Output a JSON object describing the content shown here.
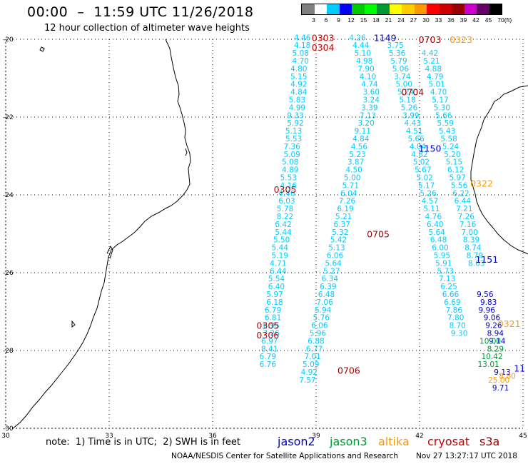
{
  "header": {
    "title": "00:00  –  11:59 UTC 11/26/2018",
    "subtitle": "12 hour collection of altimeter wave heights"
  },
  "legend_scale": {
    "labels": [
      "3",
      "6",
      "9",
      "12",
      "15",
      "18",
      "21",
      "24",
      "27",
      "30",
      "33",
      "36",
      "39",
      "42",
      "45",
      "70"
    ],
    "unit": "(ft)",
    "colors": [
      "#808080",
      "#ffffff",
      "#00ccff",
      "#0000ff",
      "#00cc00",
      "#00ff00",
      "#009933",
      "#ffff00",
      "#ffcc00",
      "#ff9900",
      "#ff0000",
      "#cc0000",
      "#990000",
      "#cc00cc",
      "#660066",
      "#000000"
    ]
  },
  "map": {
    "lon_labels": [
      "30",
      "33",
      "36",
      "39",
      "42",
      "45"
    ],
    "lat_labels": [
      "-20",
      "-22",
      "-24",
      "-26",
      "-28",
      "-30"
    ],
    "colors": {
      "jason2": "#0000cc",
      "jason3": "#009933",
      "altika": "#ff9900",
      "cryosat": "#cc0000",
      "s3a": "#990000",
      "swh_cyan": "#00ccff"
    }
  },
  "chart_data": {
    "type": "scatter",
    "xlabel": "",
    "ylabel": "",
    "xlim": [
      30,
      45
    ],
    "ylim": [
      -30,
      -20
    ],
    "grid": true,
    "tracks": [
      {
        "satellite": "cryosat",
        "passes": [
          {
            "label": "0303",
            "lon": 39.2,
            "lat": -19.95
          },
          {
            "label": "0304",
            "lon": 39.2,
            "lat": -20.2
          },
          {
            "label": "0305",
            "lon": 38.1,
            "lat": -23.85
          },
          {
            "label": "0305",
            "lon": 37.6,
            "lat": -27.35
          },
          {
            "label": "0306",
            "lon": 37.6,
            "lat": -27.6
          }
        ]
      },
      {
        "satellite": "s3a",
        "passes": [
          {
            "label": "0703",
            "lon": 42.3,
            "lat": -20.0
          },
          {
            "label": "0704",
            "lon": 41.8,
            "lat": -21.35
          },
          {
            "label": "0705",
            "lon": 40.8,
            "lat": -25.0
          },
          {
            "label": "0706",
            "lon": 39.95,
            "lat": -28.5
          }
        ]
      },
      {
        "satellite": "jason2",
        "passes": [
          {
            "label": "1149",
            "lon": 41.0,
            "lat": -19.95
          },
          {
            "label": "1150",
            "lon": 42.3,
            "lat": -22.8
          },
          {
            "label": "1151",
            "lon": 43.95,
            "lat": -25.65
          },
          {
            "label": "11",
            "lon": 44.9,
            "lat": -28.45
          }
        ]
      },
      {
        "satellite": "altika",
        "passes": [
          {
            "label": "0323",
            "lon": 43.2,
            "lat": -20.0
          },
          {
            "label": "0322",
            "lon": 43.8,
            "lat": -23.7
          },
          {
            "label": "0321",
            "lon": 44.6,
            "lat": -27.3
          }
        ]
      }
    ],
    "observations": [
      {
        "track": "A",
        "color": "cyan",
        "points": [
          [
            38.6,
            -19.95,
            "4.46"
          ],
          [
            38.6,
            -20.15,
            "4.18"
          ],
          [
            38.55,
            -20.35,
            "5.08"
          ],
          [
            38.55,
            -20.55,
            "4.70"
          ],
          [
            38.5,
            -20.75,
            "4.80"
          ],
          [
            38.5,
            -20.95,
            "5.15"
          ],
          [
            38.5,
            -21.15,
            "4.92"
          ],
          [
            38.5,
            -21.35,
            "4.84"
          ],
          [
            38.45,
            -21.55,
            "5.83"
          ],
          [
            38.45,
            -21.75,
            "4.99"
          ],
          [
            38.4,
            -21.95,
            "9.33"
          ],
          [
            38.4,
            -22.15,
            "5.92"
          ],
          [
            38.35,
            -22.35,
            "5.13"
          ],
          [
            38.35,
            -22.55,
            "5.53"
          ],
          [
            38.3,
            -22.75,
            "7.36"
          ],
          [
            38.3,
            -22.95,
            "5.09"
          ],
          [
            38.25,
            -23.15,
            "5.08"
          ],
          [
            38.25,
            -23.35,
            "4.89"
          ],
          [
            38.2,
            -23.55,
            "5.53"
          ],
          [
            38.2,
            -23.75,
            "4.16"
          ],
          [
            38.15,
            -23.95,
            "4.46"
          ],
          [
            38.15,
            -24.15,
            "6.03"
          ],
          [
            38.1,
            -24.35,
            "5.78"
          ],
          [
            38.1,
            -24.55,
            "8.22"
          ],
          [
            38.05,
            -24.75,
            "6.42"
          ],
          [
            38.05,
            -24.95,
            "5.44"
          ],
          [
            38.0,
            -25.15,
            "5.50"
          ],
          [
            37.95,
            -25.35,
            "5.44"
          ],
          [
            37.95,
            -25.55,
            "5.19"
          ],
          [
            37.9,
            -25.75,
            "4.71"
          ],
          [
            37.9,
            -25.95,
            "6.44"
          ],
          [
            37.85,
            -26.15,
            "5.54"
          ],
          [
            37.85,
            -26.35,
            "6.40"
          ],
          [
            37.8,
            -26.55,
            "5.97"
          ],
          [
            37.8,
            -26.75,
            "6.18"
          ],
          [
            37.75,
            -26.95,
            "6.79"
          ],
          [
            37.75,
            -27.15,
            "6.81"
          ],
          [
            37.7,
            -27.35,
            "6.95"
          ],
          [
            37.7,
            -27.55,
            "7.26"
          ],
          [
            37.65,
            -27.75,
            "6.97"
          ],
          [
            37.65,
            -27.95,
            "8.41"
          ],
          [
            37.6,
            -28.15,
            "6.79"
          ],
          [
            37.6,
            -28.35,
            "6.76"
          ]
        ]
      },
      {
        "track": "B",
        "color": "cyan",
        "points": [
          [
            40.2,
            -19.95,
            "4.26"
          ],
          [
            40.3,
            -20.15,
            "4.44"
          ],
          [
            40.35,
            -20.35,
            "5.10"
          ],
          [
            40.4,
            -20.55,
            "4.98"
          ],
          [
            40.45,
            -20.75,
            "7.90"
          ],
          [
            40.5,
            -20.95,
            "4.10"
          ],
          [
            40.55,
            -21.15,
            "4.74"
          ],
          [
            40.6,
            -21.35,
            "3.60"
          ],
          [
            40.6,
            -21.55,
            "3.24"
          ],
          [
            40.55,
            -21.75,
            "3.39"
          ],
          [
            40.5,
            -21.95,
            "7.13"
          ],
          [
            40.45,
            -22.15,
            "3.20"
          ],
          [
            40.35,
            -22.35,
            "9.11"
          ],
          [
            40.3,
            -22.55,
            "4.84"
          ],
          [
            40.25,
            -22.75,
            "4.56"
          ],
          [
            40.2,
            -22.95,
            "5.23"
          ],
          [
            40.15,
            -23.15,
            "3.87"
          ],
          [
            40.1,
            -23.35,
            "4.50"
          ],
          [
            40.05,
            -23.55,
            "5.00"
          ],
          [
            40.0,
            -23.75,
            "5.71"
          ],
          [
            39.95,
            -23.95,
            "6.04"
          ],
          [
            39.9,
            -24.15,
            "7.26"
          ],
          [
            39.85,
            -24.35,
            "6.19"
          ],
          [
            39.8,
            -24.55,
            "5.21"
          ],
          [
            39.75,
            -24.75,
            "6.37"
          ],
          [
            39.7,
            -24.95,
            "5.32"
          ],
          [
            39.65,
            -25.15,
            "5.42"
          ],
          [
            39.6,
            -25.35,
            "5.13"
          ],
          [
            39.55,
            -25.55,
            "6.06"
          ],
          [
            39.5,
            -25.75,
            "5.64"
          ],
          [
            39.45,
            -25.95,
            "5.27"
          ],
          [
            39.4,
            -26.15,
            "6.34"
          ],
          [
            39.35,
            -26.35,
            "6.39"
          ],
          [
            39.3,
            -26.55,
            "6.48"
          ],
          [
            39.25,
            -26.75,
            "7.06"
          ],
          [
            39.2,
            -26.95,
            "5.94"
          ],
          [
            39.15,
            -27.15,
            "5.76"
          ],
          [
            39.1,
            -27.35,
            "6.06"
          ],
          [
            39.05,
            -27.55,
            "5.96"
          ],
          [
            39.0,
            -27.75,
            "6.88"
          ],
          [
            38.95,
            -27.95,
            "6.77"
          ],
          [
            38.9,
            -28.15,
            "7.01"
          ],
          [
            38.85,
            -28.35,
            "5.09"
          ],
          [
            38.8,
            -28.55,
            "4.92"
          ],
          [
            38.75,
            -28.75,
            "7.57"
          ]
        ]
      },
      {
        "track": "C",
        "color": "cyan",
        "points": [
          [
            41.3,
            -20.15,
            "3.75"
          ],
          [
            41.35,
            -20.35,
            "5.36"
          ],
          [
            41.4,
            -20.55,
            "5.79"
          ],
          [
            41.45,
            -20.75,
            "5.06"
          ],
          [
            41.5,
            -20.95,
            "3.74"
          ],
          [
            41.55,
            -21.15,
            "5.00"
          ],
          [
            41.6,
            -21.35,
            "5.24"
          ],
          [
            41.65,
            -21.55,
            "5.18"
          ],
          [
            41.7,
            -21.75,
            "5.26"
          ],
          [
            41.75,
            -21.95,
            "3.99"
          ],
          [
            41.8,
            -22.15,
            "4.43"
          ],
          [
            41.85,
            -22.35,
            "4.51"
          ],
          [
            41.9,
            -22.55,
            "5.66"
          ],
          [
            41.95,
            -22.75,
            "4.04"
          ],
          [
            42.0,
            -22.95,
            "4.82"
          ],
          [
            42.05,
            -23.15,
            "5.02"
          ],
          [
            42.1,
            -23.35,
            "5.67"
          ],
          [
            42.15,
            -23.55,
            "5.02"
          ],
          [
            42.2,
            -23.75,
            "5.17"
          ],
          [
            42.25,
            -23.95,
            "5.26"
          ],
          [
            42.3,
            -24.15,
            "4.57"
          ],
          [
            42.35,
            -24.35,
            "5.11"
          ],
          [
            42.4,
            -24.55,
            "4.76"
          ],
          [
            42.45,
            -24.75,
            "6.40"
          ],
          [
            42.5,
            -24.95,
            "5.64"
          ],
          [
            42.55,
            -25.15,
            "6.48"
          ],
          [
            42.6,
            -25.35,
            "6.00"
          ],
          [
            42.65,
            -25.55,
            "5.95"
          ],
          [
            42.7,
            -25.75,
            "5.91"
          ],
          [
            42.75,
            -25.95,
            "5.73"
          ],
          [
            42.8,
            -26.15,
            "7.13"
          ],
          [
            42.85,
            -26.35,
            "6.25"
          ],
          [
            42.9,
            -26.55,
            "6.66"
          ],
          [
            42.95,
            -26.75,
            "6.69"
          ],
          [
            43.0,
            -26.95,
            "7.86"
          ],
          [
            43.05,
            -27.15,
            "7.80"
          ],
          [
            43.1,
            -27.35,
            "8.70"
          ],
          [
            43.15,
            -27.55,
            "9.30"
          ]
        ]
      },
      {
        "track": "D",
        "color": "cyan",
        "points": [
          [
            42.3,
            -20.35,
            "4.42"
          ],
          [
            42.35,
            -20.55,
            "5.21"
          ],
          [
            42.4,
            -20.75,
            "4.88"
          ],
          [
            42.45,
            -20.95,
            "4.79"
          ],
          [
            42.5,
            -21.15,
            "5.01"
          ],
          [
            42.55,
            -21.35,
            "4.70"
          ],
          [
            42.6,
            -21.55,
            "5.17"
          ],
          [
            42.65,
            -21.75,
            "5.30"
          ],
          [
            42.7,
            -21.95,
            "5.66"
          ],
          [
            42.75,
            -22.15,
            "5.59"
          ],
          [
            42.8,
            -22.35,
            "5.43"
          ],
          [
            42.85,
            -22.55,
            "5.58"
          ],
          [
            42.9,
            -22.75,
            "5.24"
          ],
          [
            42.95,
            -22.95,
            "5.20"
          ],
          [
            43.0,
            -23.15,
            "5.15"
          ],
          [
            43.05,
            -23.35,
            "6.12"
          ],
          [
            43.1,
            -23.55,
            "5.97"
          ],
          [
            43.15,
            -23.75,
            "5.56"
          ],
          [
            43.2,
            -23.95,
            "6.22"
          ],
          [
            43.25,
            -24.15,
            "6.44"
          ],
          [
            43.3,
            -24.35,
            "7.21"
          ],
          [
            43.35,
            -24.55,
            "7.26"
          ],
          [
            43.4,
            -24.75,
            "7.16"
          ],
          [
            43.45,
            -24.95,
            "7.00"
          ],
          [
            43.5,
            -25.15,
            "8.39"
          ],
          [
            43.55,
            -25.35,
            "8.74"
          ],
          [
            43.6,
            -25.55,
            "8.79"
          ],
          [
            43.65,
            -25.75,
            "8.63"
          ]
        ]
      },
      {
        "track": "E",
        "color": "jason2",
        "points": [
          [
            43.9,
            -26.55,
            "9.56"
          ],
          [
            44.0,
            -26.75,
            "9.83"
          ],
          [
            43.95,
            -26.95,
            "9.96"
          ],
          [
            44.1,
            -27.15,
            "9.06"
          ],
          [
            44.15,
            -27.35,
            "9.26"
          ],
          [
            44.2,
            -27.55,
            "8.94"
          ],
          [
            44.25,
            -27.75,
            "9.14"
          ],
          [
            44.4,
            -28.55,
            "9.13"
          ],
          [
            44.35,
            -28.95,
            "9.71"
          ]
        ]
      },
      {
        "track": "F",
        "color": "jason3",
        "points": [
          [
            44.05,
            -27.75,
            "10.00"
          ],
          [
            44.2,
            -27.95,
            "8.29"
          ],
          [
            44.1,
            -28.15,
            "10.42"
          ],
          [
            44.0,
            -28.35,
            "13.01"
          ]
        ]
      },
      {
        "track": "G",
        "color": "altika",
        "points": [
          [
            44.3,
            -28.75,
            "25.00"
          ],
          [
            44.55,
            -28.65,
            "8.80"
          ]
        ]
      }
    ]
  },
  "footer": {
    "note": "note:  1) Time is in UTC;  2) SWH is in feet",
    "satellites": [
      {
        "name": "jason2",
        "color": "#0000cc"
      },
      {
        "name": "jason3",
        "color": "#009933"
      },
      {
        "name": "altika",
        "color": "#ff9900"
      },
      {
        "name": "cryosat",
        "color": "#cc0000"
      },
      {
        "name": "s3a",
        "color": "#990000"
      }
    ],
    "credit": "NOAA/NESDIS Center for Satellite Applications and Research",
    "created": "Nov 27 13:27:17 UTC 2018"
  }
}
